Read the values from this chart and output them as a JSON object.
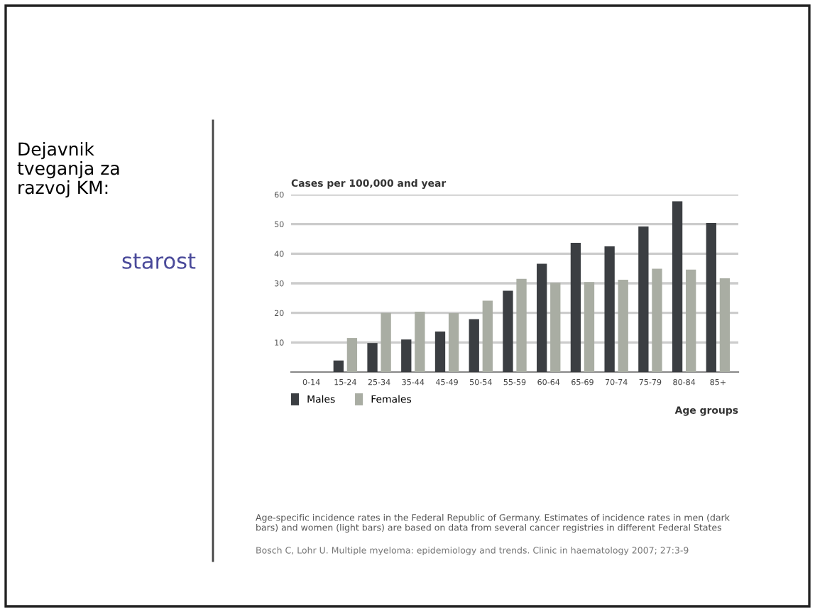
{
  "chart_data": {
    "type": "bar",
    "title": "Cases per 100,000 and year",
    "xlabel": "Age groups",
    "categories": [
      "0-14",
      "15-24",
      "25-34",
      "35-44",
      "45-49",
      "50-54",
      "55-59",
      "60-64",
      "65-69",
      "70-74",
      "75-79",
      "80-84",
      "85+"
    ],
    "series": [
      {
        "name": "Males",
        "color": "#3b3e42",
        "values": [
          0,
          3.9,
          9.8,
          11,
          13.7,
          17.9,
          27.5,
          36.6,
          43.7,
          42.5,
          49.2,
          57.7,
          50.4
        ]
      },
      {
        "name": "Females",
        "color": "#a9ada3",
        "values": [
          0,
          11.5,
          20,
          20.4,
          19.9,
          24.1,
          31.5,
          30.2,
          30.4,
          31.2,
          34.9,
          34.6,
          31.7
        ]
      }
    ],
    "ylim": [
      0,
      60
    ],
    "yticks": [
      10,
      20,
      30,
      40,
      50,
      60
    ],
    "grid": "y",
    "legend": "bottom left",
    "annotations": [
      "Dejavnik tveganja za razvoj KM:",
      "starost",
      "Age-specific incidence rates in the Federal Republic of Germany. Estimates of incidence rates in men (dark bars) and women (light bars) are based on data from several cancer registries in different Federal States",
      "Bosch C, Lohr U. Multiple myeloma: epidemiology and trends. Clinic in haematology 2007; 27:3-9"
    ]
  }
}
